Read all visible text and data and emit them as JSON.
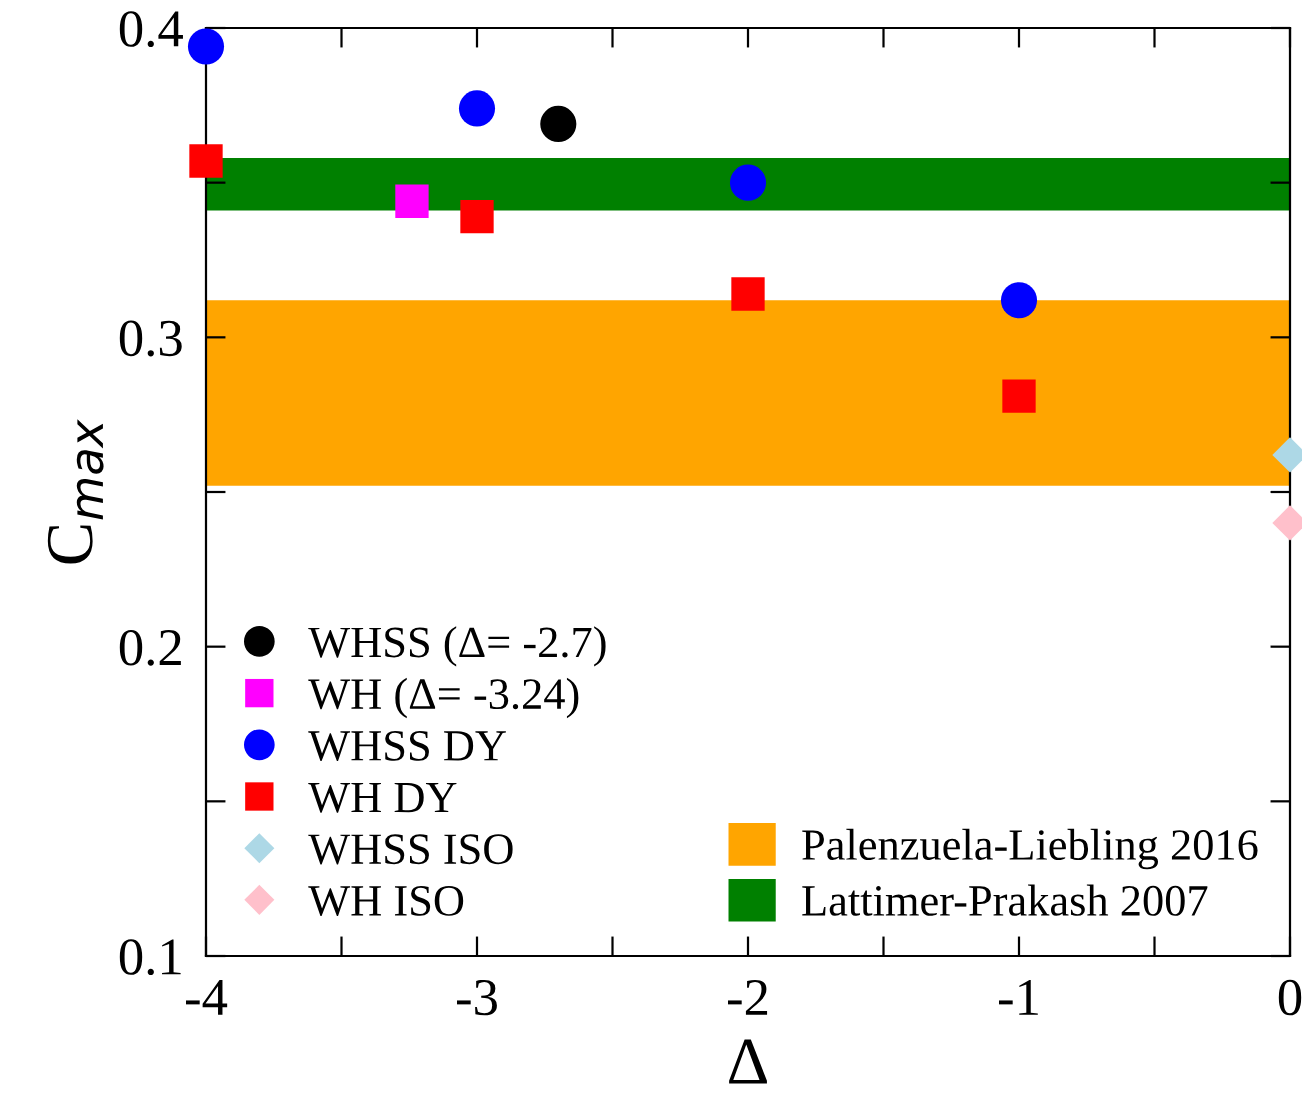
{
  "chart_data": {
    "type": "scatter",
    "xlabel": "Δ",
    "ylabel": "C$_{max}$",
    "xlim": [
      -4,
      0
    ],
    "ylim": [
      0.1,
      0.4
    ],
    "xticks": [
      -4,
      {
        "value": -3.5,
        "label": null
      },
      -3,
      {
        "value": -2.5,
        "label": null
      },
      -2,
      {
        "value": -1.5,
        "label": null
      },
      -1,
      {
        "value": -0.5,
        "label": null
      },
      0
    ],
    "yticks": [
      {
        "value": 0.1,
        "label": "0.1"
      },
      {
        "value": 0.15,
        "label": null
      },
      {
        "value": 0.2,
        "label": "0.2"
      },
      {
        "value": 0.25,
        "label": null
      },
      {
        "value": 0.3,
        "label": "0.3"
      },
      {
        "value": 0.35,
        "label": null
      },
      {
        "value": 0.4,
        "label": "0.4"
      }
    ],
    "grid": false,
    "legend": "bottom left",
    "bands": [
      {
        "axis": "y",
        "from": 0.252,
        "to": 0.312,
        "label": "Palenzuela-Liebling 2016",
        "color": "#ffa500"
      },
      {
        "axis": "y",
        "from": 0.341,
        "to": 0.358,
        "label": "Lattimer-Prakash 2007",
        "color": "#008000"
      }
    ],
    "series": [
      {
        "name": "WHSS (Δ= -2.7)",
        "color": "#000000",
        "marker": "circle",
        "x": [
          -2.7
        ],
        "values": [
          0.369
        ]
      },
      {
        "name": "WH (Δ= -3.24)",
        "color": "#ff00ff",
        "marker": "square",
        "x": [
          -3.24
        ],
        "values": [
          0.344
        ]
      },
      {
        "name": "WHSS DY",
        "color": "#0000ff",
        "marker": "circle",
        "x": [
          -4,
          -3,
          -2,
          -1
        ],
        "values": [
          0.394,
          0.374,
          0.35,
          0.312
        ]
      },
      {
        "name": "WH DY",
        "color": "#ff0000",
        "marker": "square",
        "x": [
          -4,
          -3,
          -2,
          -1
        ],
        "values": [
          0.357,
          0.339,
          0.314,
          0.281
        ]
      },
      {
        "name": "WHSS ISO",
        "color": "#add8e6",
        "marker": "diamond",
        "x": [
          0
        ],
        "values": [
          0.262
        ]
      },
      {
        "name": "WH ISO",
        "color": "#ffc0cb",
        "marker": "diamond",
        "x": [
          0
        ],
        "values": [
          0.24
        ]
      }
    ]
  }
}
